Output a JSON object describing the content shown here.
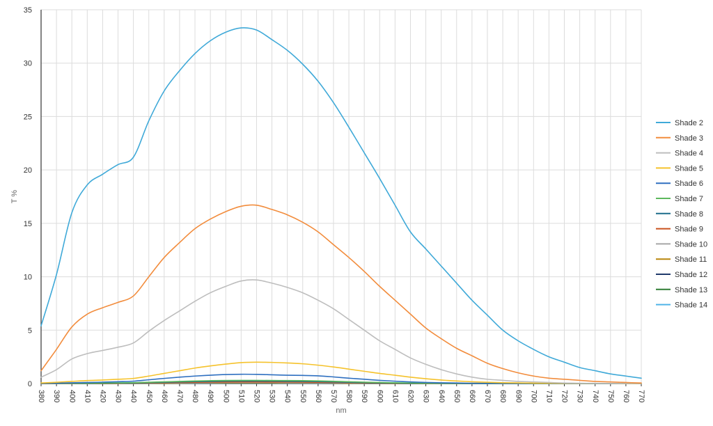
{
  "chart_data": {
    "type": "line",
    "title": "",
    "xlabel": "nm",
    "ylabel": "T %",
    "xlim": [
      380,
      770
    ],
    "ylim": [
      0,
      35
    ],
    "grid": true,
    "legend_position": "right",
    "x": [
      380,
      390,
      400,
      410,
      420,
      430,
      440,
      450,
      460,
      470,
      480,
      490,
      500,
      510,
      520,
      530,
      540,
      550,
      560,
      570,
      580,
      590,
      600,
      610,
      620,
      630,
      640,
      650,
      660,
      670,
      680,
      690,
      700,
      710,
      720,
      730,
      740,
      750,
      760,
      770
    ],
    "x_tick_labels": [
      "380",
      "390",
      "400",
      "410",
      "420",
      "430",
      "440",
      "450",
      "460",
      "470",
      "480",
      "490",
      "500",
      "510",
      "520",
      "530",
      "540",
      "550",
      "560",
      "570",
      "580",
      "590",
      "600",
      "610",
      "620",
      "630",
      "640",
      "650",
      "660",
      "670",
      "680",
      "690",
      "700",
      "710",
      "720",
      "730",
      "740",
      "750",
      "760",
      "770"
    ],
    "y_tick_labels": [
      "0",
      "5",
      "10",
      "15",
      "20",
      "25",
      "30",
      "35"
    ],
    "y_ticks": [
      0,
      5,
      10,
      15,
      20,
      25,
      30,
      35
    ],
    "series": [
      {
        "name": "Shade 2",
        "color": "#3fa9d8",
        "values": [
          5.4,
          10.2,
          16.0,
          18.6,
          19.6,
          20.5,
          21.2,
          24.6,
          27.4,
          29.3,
          30.9,
          32.1,
          32.9,
          33.3,
          33.1,
          32.2,
          31.2,
          29.9,
          28.3,
          26.3,
          24.0,
          21.6,
          19.2,
          16.7,
          14.2,
          12.6,
          11.0,
          9.4,
          7.8,
          6.4,
          5.0,
          4.0,
          3.2,
          2.5,
          2.0,
          1.5,
          1.2,
          0.9,
          0.7,
          0.5
        ]
      },
      {
        "name": "Shade 3",
        "color": "#f28c3c",
        "values": [
          1.2,
          3.2,
          5.3,
          6.5,
          7.1,
          7.6,
          8.2,
          10.0,
          11.8,
          13.2,
          14.5,
          15.4,
          16.1,
          16.6,
          16.7,
          16.3,
          15.8,
          15.1,
          14.2,
          13.0,
          11.8,
          10.5,
          9.1,
          7.8,
          6.5,
          5.2,
          4.2,
          3.3,
          2.6,
          1.9,
          1.4,
          1.0,
          0.7,
          0.5,
          0.4,
          0.3,
          0.2,
          0.15,
          0.1,
          0.05
        ]
      },
      {
        "name": "Shade 4",
        "color": "#bdbdbd",
        "values": [
          0.6,
          1.3,
          2.3,
          2.8,
          3.1,
          3.4,
          3.8,
          4.9,
          5.9,
          6.8,
          7.7,
          8.5,
          9.1,
          9.6,
          9.7,
          9.4,
          9.0,
          8.5,
          7.8,
          7.0,
          6.0,
          5.0,
          4.0,
          3.2,
          2.4,
          1.8,
          1.3,
          0.9,
          0.6,
          0.4,
          0.3,
          0.2,
          0.15,
          0.1,
          0.05,
          0.03,
          0.02,
          0.01,
          0.01,
          0.01
        ]
      },
      {
        "name": "Shade 5",
        "color": "#f5c22b",
        "values": [
          0.05,
          0.12,
          0.2,
          0.28,
          0.33,
          0.4,
          0.48,
          0.7,
          0.95,
          1.2,
          1.45,
          1.65,
          1.82,
          1.96,
          2.0,
          1.98,
          1.93,
          1.85,
          1.72,
          1.55,
          1.35,
          1.15,
          0.95,
          0.78,
          0.6,
          0.45,
          0.33,
          0.24,
          0.17,
          0.12,
          0.08,
          0.06,
          0.04,
          0.03,
          0.02,
          0.01,
          0.01,
          0.01,
          0.0,
          0.0
        ]
      },
      {
        "name": "Shade 6",
        "color": "#2e6fc0",
        "values": [
          0.02,
          0.04,
          0.07,
          0.1,
          0.13,
          0.17,
          0.22,
          0.35,
          0.48,
          0.6,
          0.7,
          0.78,
          0.84,
          0.87,
          0.86,
          0.82,
          0.78,
          0.76,
          0.72,
          0.62,
          0.5,
          0.4,
          0.3,
          0.22,
          0.15,
          0.1,
          0.07,
          0.05,
          0.03,
          0.02,
          0.01,
          0.01,
          0.01,
          0.0,
          0.0,
          0.0,
          0.0,
          0.0,
          0.0,
          0.0
        ]
      },
      {
        "name": "Shade 7",
        "color": "#5cb85c",
        "values": [
          0.01,
          0.02,
          0.03,
          0.04,
          0.05,
          0.06,
          0.08,
          0.12,
          0.16,
          0.2,
          0.24,
          0.27,
          0.29,
          0.3,
          0.3,
          0.29,
          0.28,
          0.27,
          0.25,
          0.21,
          0.17,
          0.13,
          0.1,
          0.07,
          0.05,
          0.03,
          0.02,
          0.01,
          0.01,
          0.0,
          0.0,
          0.0,
          0.0,
          0.0,
          0.0,
          0.0,
          0.0,
          0.0,
          0.0,
          0.0
        ]
      },
      {
        "name": "Shade 8",
        "color": "#1a6b8a",
        "values": [
          0.01,
          0.01,
          0.02,
          0.03,
          0.04,
          0.05,
          0.06,
          0.09,
          0.12,
          0.15,
          0.18,
          0.2,
          0.22,
          0.23,
          0.23,
          0.22,
          0.21,
          0.2,
          0.18,
          0.15,
          0.12,
          0.09,
          0.07,
          0.05,
          0.03,
          0.02,
          0.01,
          0.01,
          0.0,
          0.0,
          0.0,
          0.0,
          0.0,
          0.0,
          0.0,
          0.0,
          0.0,
          0.0,
          0.0,
          0.0
        ]
      },
      {
        "name": "Shade 9",
        "color": "#c9501c",
        "values": [
          0.0,
          0.01,
          0.01,
          0.02,
          0.02,
          0.03,
          0.04,
          0.06,
          0.08,
          0.1,
          0.12,
          0.13,
          0.14,
          0.15,
          0.15,
          0.14,
          0.14,
          0.13,
          0.12,
          0.1,
          0.08,
          0.06,
          0.04,
          0.03,
          0.02,
          0.01,
          0.01,
          0.0,
          0.0,
          0.0,
          0.0,
          0.0,
          0.0,
          0.0,
          0.0,
          0.0,
          0.0,
          0.0,
          0.0,
          0.0
        ]
      },
      {
        "name": "Shade 10",
        "color": "#a6a6a6",
        "values": [
          0.0,
          0.0,
          0.01,
          0.01,
          0.02,
          0.02,
          0.03,
          0.04,
          0.05,
          0.06,
          0.07,
          0.08,
          0.09,
          0.09,
          0.09,
          0.09,
          0.08,
          0.08,
          0.07,
          0.06,
          0.05,
          0.04,
          0.03,
          0.02,
          0.01,
          0.01,
          0.0,
          0.0,
          0.0,
          0.0,
          0.0,
          0.0,
          0.0,
          0.0,
          0.0,
          0.0,
          0.0,
          0.0,
          0.0,
          0.0
        ]
      },
      {
        "name": "Shade 11",
        "color": "#b8860b",
        "values": [
          0.0,
          0.0,
          0.0,
          0.01,
          0.01,
          0.01,
          0.02,
          0.03,
          0.03,
          0.04,
          0.05,
          0.05,
          0.06,
          0.06,
          0.06,
          0.06,
          0.05,
          0.05,
          0.05,
          0.04,
          0.03,
          0.02,
          0.02,
          0.01,
          0.01,
          0.0,
          0.0,
          0.0,
          0.0,
          0.0,
          0.0,
          0.0,
          0.0,
          0.0,
          0.0,
          0.0,
          0.0,
          0.0,
          0.0,
          0.0
        ]
      },
      {
        "name": "Shade 12",
        "color": "#1f3a6b",
        "values": [
          0.0,
          0.0,
          0.0,
          0.0,
          0.01,
          0.01,
          0.01,
          0.02,
          0.02,
          0.03,
          0.03,
          0.03,
          0.04,
          0.04,
          0.04,
          0.04,
          0.03,
          0.03,
          0.03,
          0.02,
          0.02,
          0.01,
          0.01,
          0.01,
          0.0,
          0.0,
          0.0,
          0.0,
          0.0,
          0.0,
          0.0,
          0.0,
          0.0,
          0.0,
          0.0,
          0.0,
          0.0,
          0.0,
          0.0,
          0.0
        ]
      },
      {
        "name": "Shade 13",
        "color": "#2e7d32",
        "values": [
          0.0,
          0.0,
          0.0,
          0.0,
          0.0,
          0.01,
          0.01,
          0.01,
          0.01,
          0.02,
          0.02,
          0.02,
          0.02,
          0.02,
          0.02,
          0.02,
          0.02,
          0.02,
          0.02,
          0.01,
          0.01,
          0.01,
          0.01,
          0.0,
          0.0,
          0.0,
          0.0,
          0.0,
          0.0,
          0.0,
          0.0,
          0.0,
          0.0,
          0.0,
          0.0,
          0.0,
          0.0,
          0.0,
          0.0,
          0.0
        ]
      },
      {
        "name": "Shade 14",
        "color": "#4fb3e8",
        "values": [
          0.0,
          0.0,
          0.0,
          0.0,
          0.0,
          0.0,
          0.0,
          0.01,
          0.01,
          0.01,
          0.01,
          0.01,
          0.01,
          0.01,
          0.01,
          0.01,
          0.01,
          0.01,
          0.01,
          0.01,
          0.01,
          0.0,
          0.0,
          0.0,
          0.0,
          0.0,
          0.0,
          0.0,
          0.0,
          0.0,
          0.0,
          0.0,
          0.0,
          0.0,
          0.0,
          0.0,
          0.0,
          0.0,
          0.0,
          0.0
        ]
      }
    ]
  }
}
